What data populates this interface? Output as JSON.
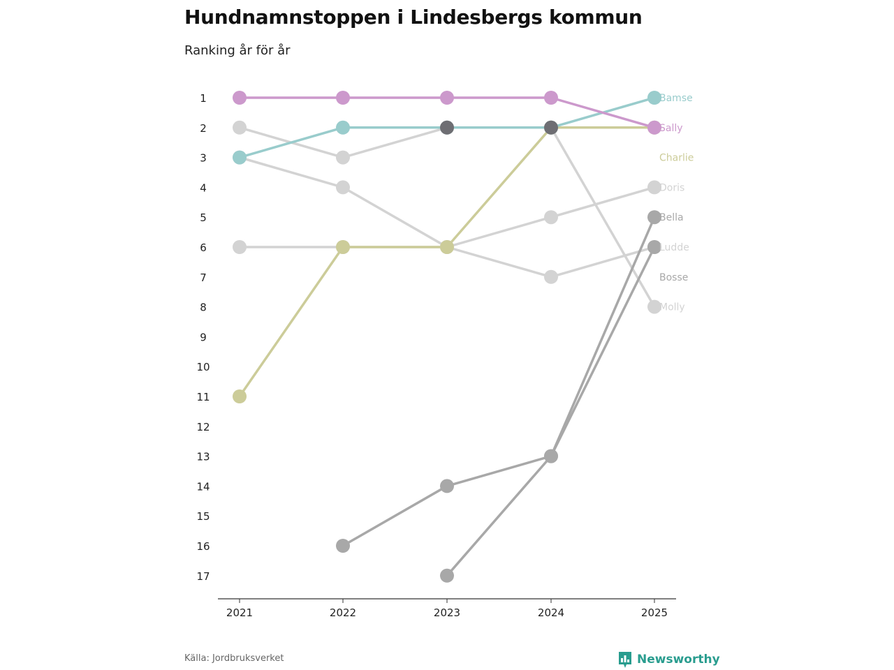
{
  "title": "Hundnamnstoppen i Lindesbergs kommun",
  "subtitle": "Ranking år för år",
  "source": "Källa: Jordbruksverket",
  "brand": "Newsworthy",
  "colors": {
    "brand": "#2a9d8f",
    "axis": "#333333"
  },
  "chart_data": {
    "type": "line",
    "title": "Hundnamnstoppen i Lindesbergs kommun",
    "subtitle": "Ranking år för år",
    "x": [
      2021,
      2022,
      2023,
      2024,
      2025
    ],
    "y_ticks": [
      1,
      2,
      3,
      4,
      5,
      6,
      7,
      8,
      9,
      10,
      11,
      12,
      13,
      14,
      15,
      16,
      17
    ],
    "ylim": [
      1,
      17
    ],
    "y_inverted": true,
    "xlabel": "",
    "ylabel": "",
    "series": [
      {
        "name": "Molly",
        "color": "#d3d3d3",
        "values": [
          2,
          3,
          2,
          2,
          8
        ]
      },
      {
        "name": "Doris",
        "color": "#d3d3d3",
        "values": [
          3,
          4,
          6,
          5,
          4
        ]
      },
      {
        "name": "Ludde",
        "color": "#d3d3d3",
        "values": [
          6,
          6,
          6,
          7,
          6
        ]
      },
      {
        "name": "Bella",
        "color": "#a8a8a8",
        "values": [
          null,
          16,
          14,
          13,
          5
        ]
      },
      {
        "name": "Bosse",
        "color": "#a8a8a8",
        "values": [
          null,
          null,
          17,
          13,
          6
        ]
      },
      {
        "name": "Charlie",
        "color": "#cccc99",
        "values": [
          11,
          6,
          6,
          2,
          2
        ]
      },
      {
        "name": "Bamse",
        "color": "#99cccc",
        "values": [
          3,
          2,
          2,
          2,
          1
        ]
      },
      {
        "name": "Sally",
        "color": "#cc99cc",
        "values": [
          1,
          1,
          1,
          1,
          2
        ]
      }
    ],
    "highlight_points": [
      {
        "year": 2023,
        "rank": 2,
        "color": "#6e6e73"
      },
      {
        "year": 2024,
        "rank": 2,
        "color": "#6e6e73"
      }
    ],
    "end_labels": [
      {
        "name": "Bamse",
        "rank": 1,
        "color": "#99cccc"
      },
      {
        "name": "Sally",
        "rank": 2,
        "color": "#cc99cc"
      },
      {
        "name": "Charlie",
        "rank": 3,
        "color": "#cccc99"
      },
      {
        "name": "Doris",
        "rank": 4,
        "color": "#d3d3d3"
      },
      {
        "name": "Bella",
        "rank": 5,
        "color": "#a8a8a8"
      },
      {
        "name": "Ludde",
        "rank": 6,
        "color": "#d3d3d3"
      },
      {
        "name": "Bosse",
        "rank": 7,
        "color": "#a8a8a8"
      },
      {
        "name": "Molly",
        "rank": 8,
        "color": "#d3d3d3"
      }
    ]
  }
}
